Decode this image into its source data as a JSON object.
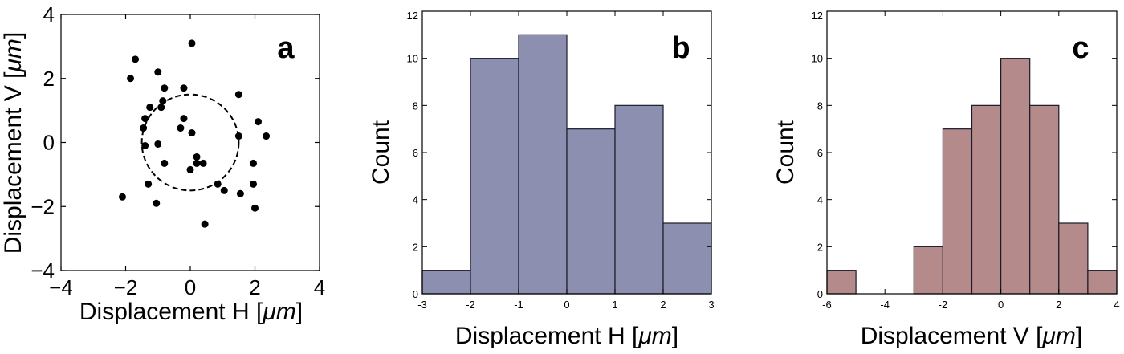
{
  "chart_data": [
    {
      "panel_label": "a",
      "type": "scatter",
      "xlabel_prefix": "Displacement H [",
      "xlabel_unit": "μm",
      "ylabel_prefix": "Displacement V [",
      "ylabel_unit": "μm",
      "xlim": [
        -4,
        4
      ],
      "ylim": [
        -4,
        4
      ],
      "xticks": [
        "−4",
        "−2",
        "0",
        "2",
        "4"
      ],
      "yticks": [
        "−4",
        "−2",
        "0",
        "2",
        "4"
      ],
      "circle": {
        "cx": 0,
        "cy": 0,
        "r": 1.5,
        "style": "dashed"
      },
      "points": [
        [
          0.05,
          3.1
        ],
        [
          -1.7,
          2.6
        ],
        [
          -1.85,
          2.0
        ],
        [
          -1.0,
          2.2
        ],
        [
          -0.8,
          1.7
        ],
        [
          -0.2,
          1.7
        ],
        [
          1.5,
          1.5
        ],
        [
          -0.85,
          1.3
        ],
        [
          -1.25,
          1.1
        ],
        [
          -0.9,
          1.1
        ],
        [
          -1.4,
          0.75
        ],
        [
          -0.2,
          0.75
        ],
        [
          -1.45,
          0.45
        ],
        [
          -0.3,
          0.45
        ],
        [
          0.05,
          0.3
        ],
        [
          2.1,
          0.65
        ],
        [
          2.35,
          0.2
        ],
        [
          1.5,
          0.2
        ],
        [
          -1.4,
          -0.1
        ],
        [
          -1.0,
          -0.05
        ],
        [
          0.2,
          -0.45
        ],
        [
          0.2,
          -0.65
        ],
        [
          0.4,
          -0.65
        ],
        [
          -0.8,
          -0.65
        ],
        [
          0.0,
          -0.85
        ],
        [
          1.95,
          -0.65
        ],
        [
          -1.3,
          -1.3
        ],
        [
          0.85,
          -1.3
        ],
        [
          1.95,
          -1.3
        ],
        [
          1.05,
          -1.5
        ],
        [
          1.55,
          -1.6
        ],
        [
          -2.1,
          -1.7
        ],
        [
          -1.05,
          -1.9
        ],
        [
          2.0,
          -2.05
        ],
        [
          0.45,
          -2.55
        ]
      ]
    },
    {
      "panel_label": "b",
      "type": "bar",
      "xlabel_prefix": "Displacement H [",
      "xlabel_unit": "μm",
      "ylabel": "Count",
      "bin_edges": [
        -3,
        -2,
        -1,
        0,
        1,
        2,
        3
      ],
      "counts": [
        1,
        10,
        11,
        7,
        8,
        3
      ],
      "xlim": [
        -3,
        3
      ],
      "ylim": [
        0,
        12
      ],
      "xticks": [
        "-3",
        "-2",
        "-1",
        "0",
        "1",
        "2",
        "3"
      ],
      "yticks": [
        "0",
        "2",
        "4",
        "6",
        "8",
        "10",
        "12"
      ],
      "color": "#8c8fb0"
    },
    {
      "panel_label": "c",
      "type": "bar",
      "xlabel_prefix": "Displacement V [",
      "xlabel_unit": "μm",
      "ylabel": "Count",
      "bin_edges": [
        -6,
        -5,
        -4,
        -3,
        -2,
        -1,
        0,
        1,
        2,
        3,
        4
      ],
      "counts": [
        1,
        0,
        0,
        2,
        7,
        8,
        10,
        8,
        3,
        1
      ],
      "xlim": [
        -6,
        4
      ],
      "ylim": [
        0,
        12
      ],
      "xticks": [
        "-6",
        "-4",
        "-2",
        "0",
        "2",
        "4"
      ],
      "yticks": [
        "0",
        "2",
        "4",
        "6",
        "8",
        "10",
        "12"
      ],
      "color": "#b58a8a"
    }
  ]
}
